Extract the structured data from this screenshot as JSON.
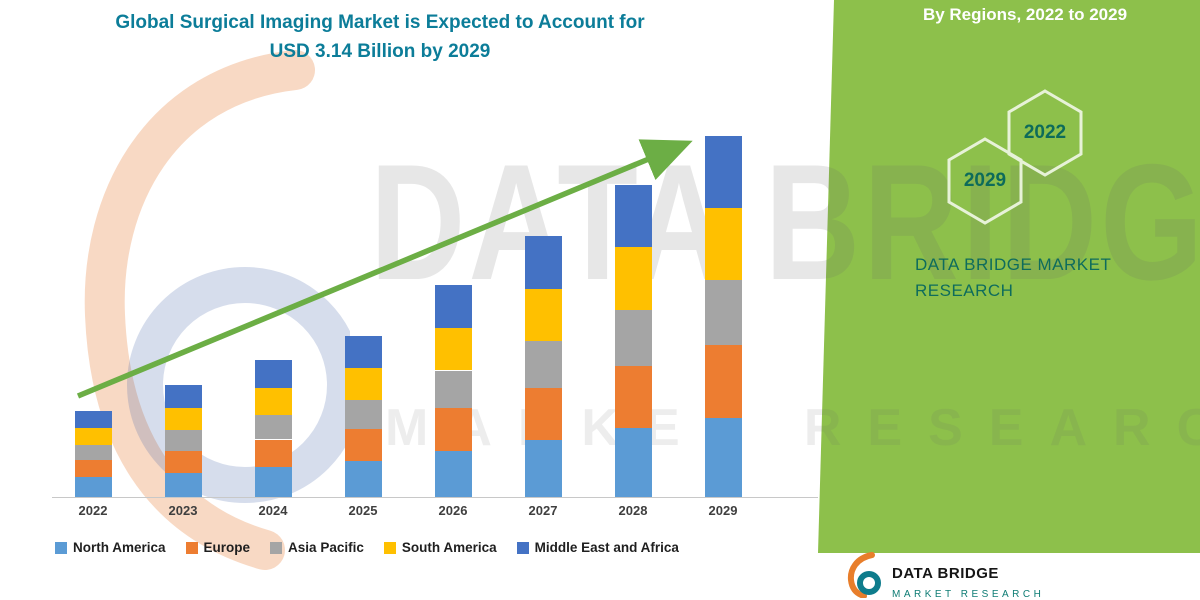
{
  "title": {
    "line1": "Global Surgical Imaging Market is Expected to Account for",
    "line2": "USD 3.14 Billion by 2029"
  },
  "panel": {
    "heading": "By Regions, 2022 to 2029",
    "hexagons": [
      "2029",
      "2022"
    ],
    "brand_line1": "DATA BRIDGE MARKET",
    "brand_line2": "RESEARCH",
    "bg_color": "#8dc04b",
    "heading_color": "#ffffff",
    "accent_text_color": "#0e6c5c"
  },
  "watermark": {
    "line1": "DATA BRIDGE",
    "line2": "MARKET RESEARCH"
  },
  "footer_logo": {
    "name": "DATA BRIDGE",
    "sub": "MARKET RESEARCH"
  },
  "chart_data": {
    "type": "bar",
    "stacked": true,
    "title": "Global Surgical Imaging Market is Expected to Account for USD 3.14 Billion by 2029",
    "unit": "USD Billion",
    "categories": [
      "2022",
      "2023",
      "2024",
      "2025",
      "2026",
      "2027",
      "2028",
      "2029"
    ],
    "series": [
      {
        "name": "North America",
        "color": "#5B9BD5",
        "values": [
          0.17,
          0.21,
          0.26,
          0.31,
          0.4,
          0.5,
          0.6,
          0.69
        ]
      },
      {
        "name": "Europe",
        "color": "#ED7D31",
        "values": [
          0.15,
          0.19,
          0.24,
          0.28,
          0.37,
          0.45,
          0.54,
          0.63
        ]
      },
      {
        "name": "Asia Pacific",
        "color": "#A5A5A5",
        "values": [
          0.13,
          0.18,
          0.21,
          0.25,
          0.33,
          0.41,
          0.49,
          0.57
        ]
      },
      {
        "name": "South America",
        "color": "#FFC000",
        "values": [
          0.15,
          0.19,
          0.24,
          0.28,
          0.37,
          0.45,
          0.54,
          0.62
        ]
      },
      {
        "name": "Middle East and Africa",
        "color": "#4472C4",
        "values": [
          0.15,
          0.2,
          0.24,
          0.28,
          0.37,
          0.46,
          0.54,
          0.63
        ]
      }
    ],
    "totals": [
      0.75,
      0.97,
      1.19,
      1.4,
      1.84,
      2.27,
      2.71,
      3.14
    ],
    "ylim": [
      0,
      3.5
    ],
    "grid": false,
    "y_axis_visible": false,
    "trend_arrow": true,
    "trend_arrow_color": "#6CAE45",
    "legend_position": "bottom"
  }
}
